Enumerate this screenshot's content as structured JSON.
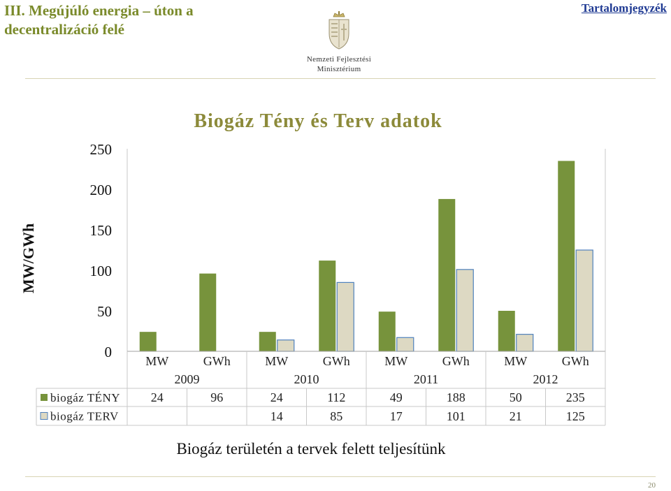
{
  "header": {
    "title_line1": "III. Megújúló energia – úton a",
    "title_line2": "decentralizáció felé",
    "toc_link": "Tartalomjegyzék"
  },
  "logo": {
    "line1": "Nemzeti Fejlesztési",
    "line2": "Minisztérium"
  },
  "caption": "Biogáz területén a tervek felett teljesítünk",
  "page_number": "20",
  "colors": {
    "teny": "#77933c",
    "terv": "#ddd9c3",
    "terv_border": "#4f81bd",
    "title": "#8c8a3a"
  },
  "chart_data": {
    "type": "bar",
    "title": "Biogáz Tény és Terv adatok",
    "ylabel": "MW/GWh",
    "ylim": [
      0,
      250
    ],
    "yticks": [
      "0",
      "50",
      "100",
      "150",
      "200",
      "250"
    ],
    "years": [
      "2009",
      "2010",
      "2011",
      "2012"
    ],
    "categories": [
      "MW",
      "GWh",
      "MW",
      "GWh",
      "MW",
      "GWh",
      "MW",
      "GWh"
    ],
    "series": [
      {
        "name": "biogáz TÉNY",
        "values": [
          24,
          96,
          24,
          112,
          49,
          188,
          50,
          235
        ],
        "labels": [
          "24",
          "96",
          "24",
          "112",
          "49",
          "188",
          "50",
          "235"
        ]
      },
      {
        "name": "biogáz TERV",
        "values": [
          null,
          null,
          14,
          85,
          17,
          101,
          21,
          125
        ],
        "labels": [
          "",
          "",
          "14",
          "85",
          "17",
          "101",
          "21",
          "125"
        ]
      }
    ],
    "grid": false,
    "legend": "data table below chart"
  }
}
